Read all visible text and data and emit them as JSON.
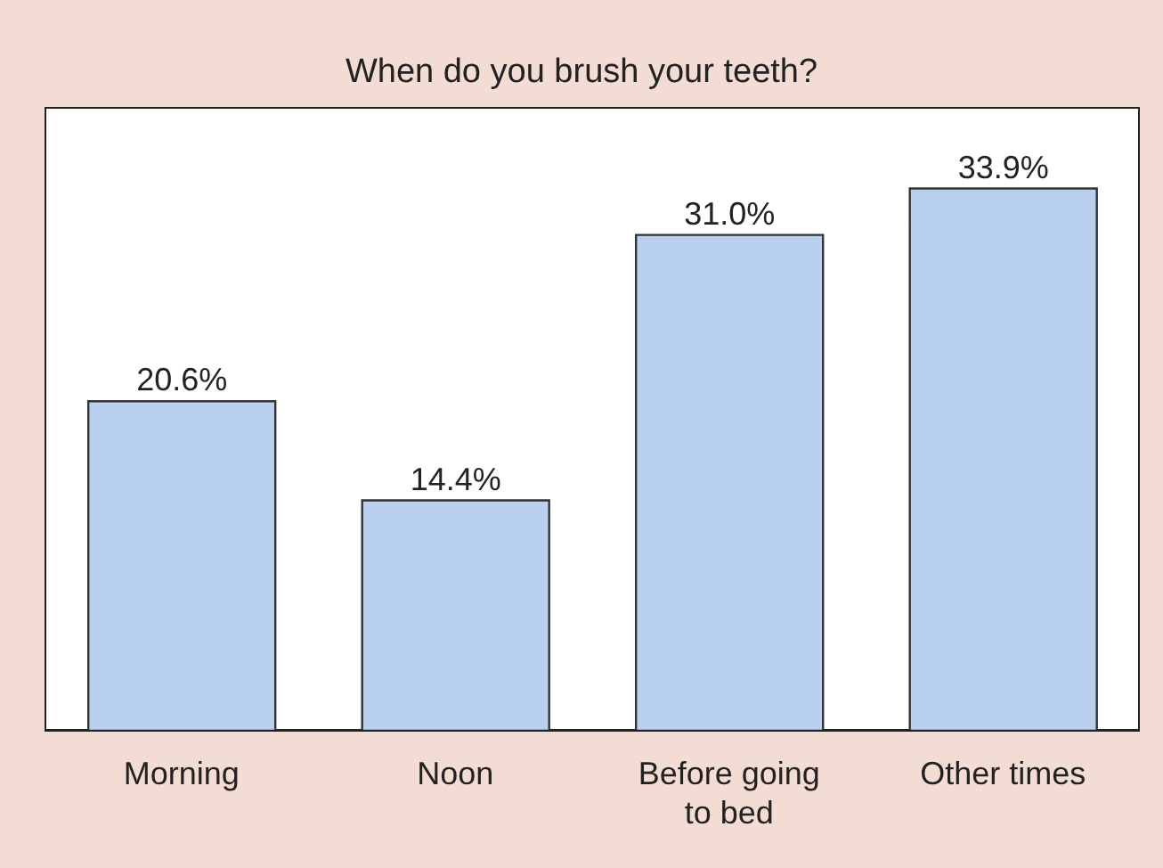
{
  "chart_data": {
    "type": "bar",
    "title": "When do you brush your teeth?",
    "categories": [
      "Morning",
      "Noon",
      "Before going to bed",
      "Other times"
    ],
    "values": [
      20.6,
      14.4,
      31.0,
      33.9
    ],
    "value_labels": [
      "20.6%",
      "14.4%",
      "31.0%",
      "33.9%"
    ],
    "color": "#b9d0ee",
    "ylim": [
      0,
      39
    ],
    "tick_labels": "x"
  }
}
